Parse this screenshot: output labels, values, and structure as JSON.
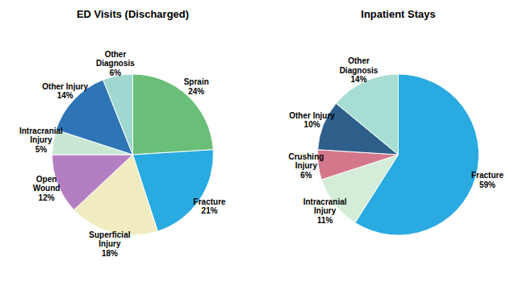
{
  "chart_data": [
    {
      "type": "pie",
      "title": "ED Visits  (Discharged)",
      "categories": [
        "Sprain",
        "Fracture",
        "Superficial\nInjury",
        "Open\nWound",
        "Intracranial\nInjury",
        "Other Injury",
        "Other\nDiagnosis"
      ],
      "values": [
        24,
        21,
        18,
        12,
        5,
        14,
        6
      ],
      "value_labels": [
        "24%",
        "21%",
        "18%",
        "12%",
        "5%",
        "14%",
        "6%"
      ],
      "colors": [
        "#6abf78",
        "#29aae1",
        "#f0ecc0",
        "#b47fc2",
        "#c8e8d4",
        "#2e75b6",
        "#9fd8d0"
      ],
      "data_labels": true
    },
    {
      "type": "pie",
      "title": "Inpatient Stays",
      "categories": [
        "Fracture",
        "Intracranial\nInjury",
        "Crushing\nInjury",
        "Other Injury",
        "Other\nDiagnosis"
      ],
      "values": [
        59,
        11,
        6,
        10,
        14
      ],
      "value_labels": [
        "59%",
        "11%",
        "6%",
        "10%",
        "14%"
      ],
      "colors": [
        "#29aae1",
        "#d4edd8",
        "#d4778a",
        "#2e5f8a",
        "#a8ddd4"
      ],
      "data_labels": true
    }
  ]
}
